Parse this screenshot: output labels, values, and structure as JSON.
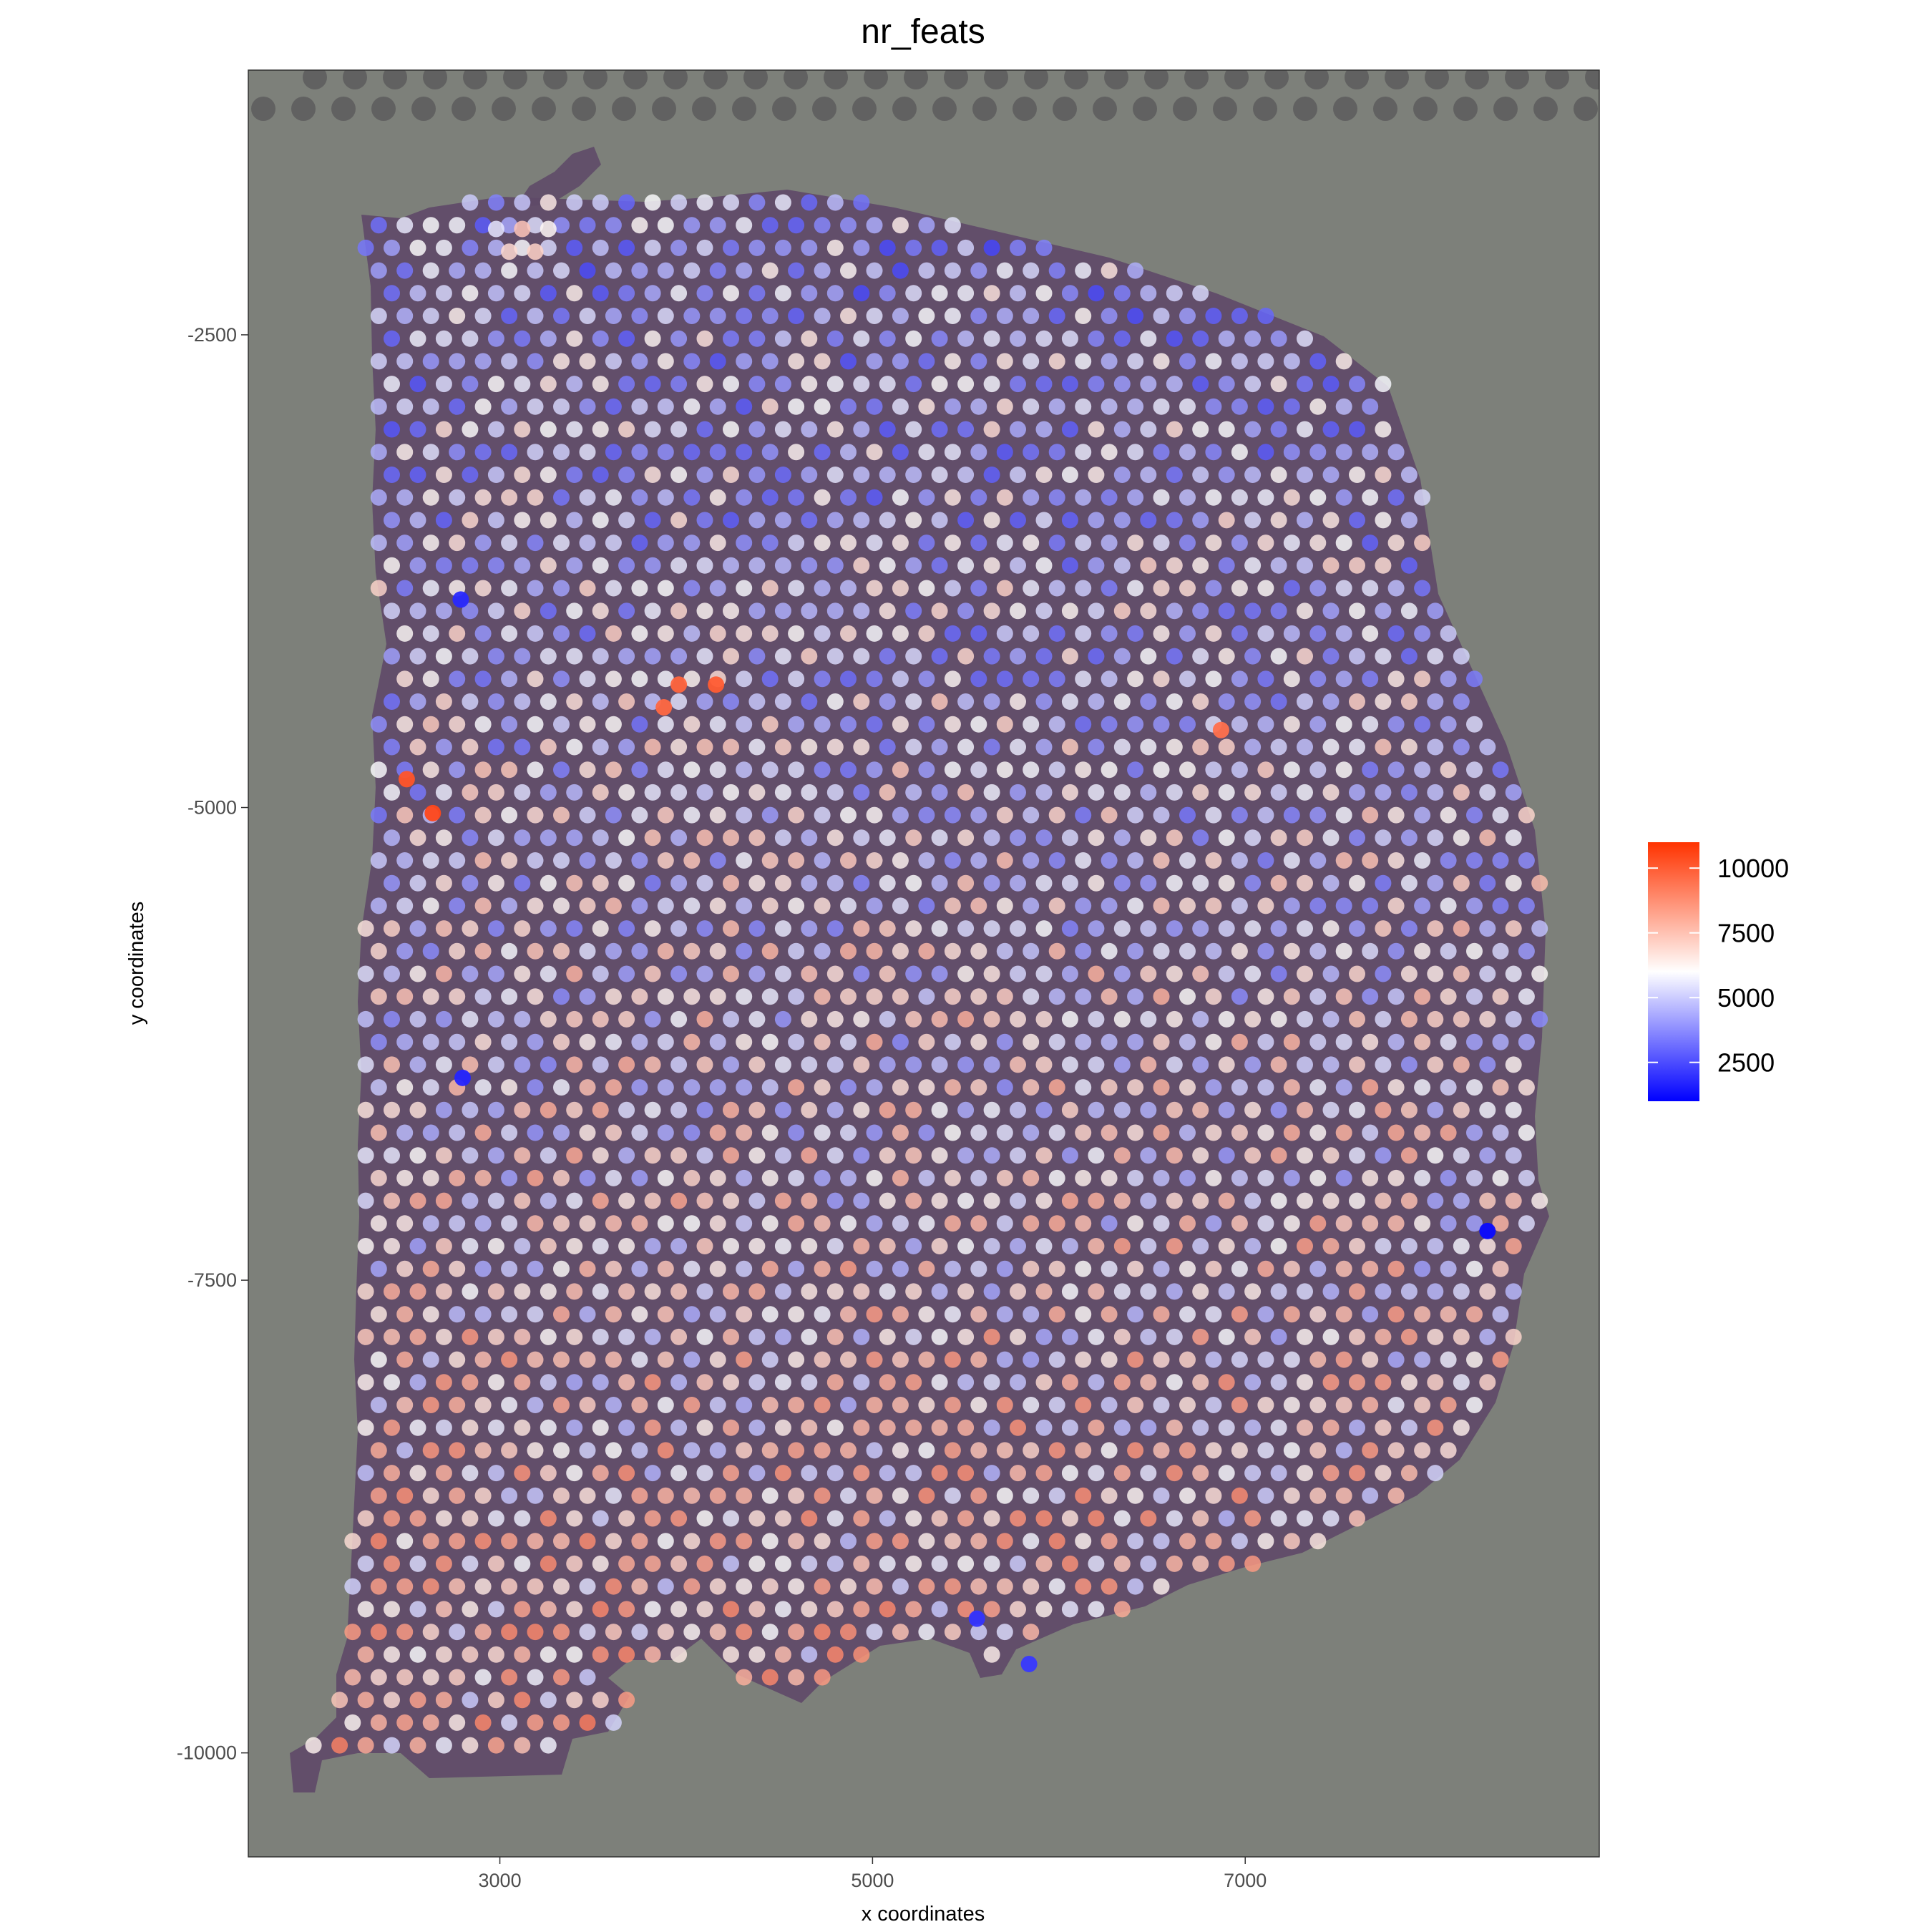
{
  "chart_data": {
    "type": "scatter",
    "title": "nr_feats",
    "xlabel": "x coordinates",
    "ylabel": "y coordinates",
    "xlim": [
      1650,
      8900
    ],
    "ylim": [
      -10550,
      -1100
    ],
    "x_ticks": [
      {
        "value": 3000,
        "label": "3000"
      },
      {
        "value": 5000,
        "label": "5000"
      },
      {
        "value": 7000,
        "label": "7000"
      }
    ],
    "y_ticks": [
      {
        "value": -2500,
        "label": "-2500"
      },
      {
        "value": -5000,
        "label": "-5000"
      },
      {
        "value": -7500,
        "label": "-7500"
      },
      {
        "value": -10000,
        "label": "-10000"
      }
    ],
    "grid": false,
    "background": "H&E tissue image",
    "legend": {
      "position": "right",
      "type": "colorbar",
      "min": 1000,
      "max": 11000,
      "ticks": [
        {
          "value": 10000,
          "label": "10000"
        },
        {
          "value": 7500,
          "label": "7500"
        },
        {
          "value": 5000,
          "label": "5000"
        },
        {
          "value": 2500,
          "label": "2500"
        }
      ],
      "colors": {
        "low": "#0000ff",
        "mid": "#ffffff",
        "high": "#ff3300"
      },
      "midpoint": 6000
    },
    "colors": {
      "tissue": "#5f4a68",
      "slide": "#7d807a",
      "fiducial": "#616161"
    },
    "spot_grid": {
      "x_start": 2000,
      "x_step": 140,
      "y_top": -1800,
      "y_step": 120,
      "rows": 69,
      "value_field": "nr_feats"
    },
    "highlights": [
      {
        "x": 2640,
        "y": -5030,
        "value": 10500
      },
      {
        "x": 2500,
        "y": -4850,
        "value": 10200
      },
      {
        "x": 4160,
        "y": -4350,
        "value": 10000
      },
      {
        "x": 3960,
        "y": -4350,
        "value": 9800
      },
      {
        "x": 3880,
        "y": -4470,
        "value": 9700
      },
      {
        "x": 6870,
        "y": -4590,
        "value": 9500
      },
      {
        "x": 8300,
        "y": -7240,
        "value": 1200
      },
      {
        "x": 2790,
        "y": -3900,
        "value": 1800
      },
      {
        "x": 2800,
        "y": -6430,
        "value": 1700
      },
      {
        "x": 5560,
        "y": -9290,
        "value": 2000
      },
      {
        "x": 5840,
        "y": -9530,
        "value": 2100
      }
    ]
  }
}
